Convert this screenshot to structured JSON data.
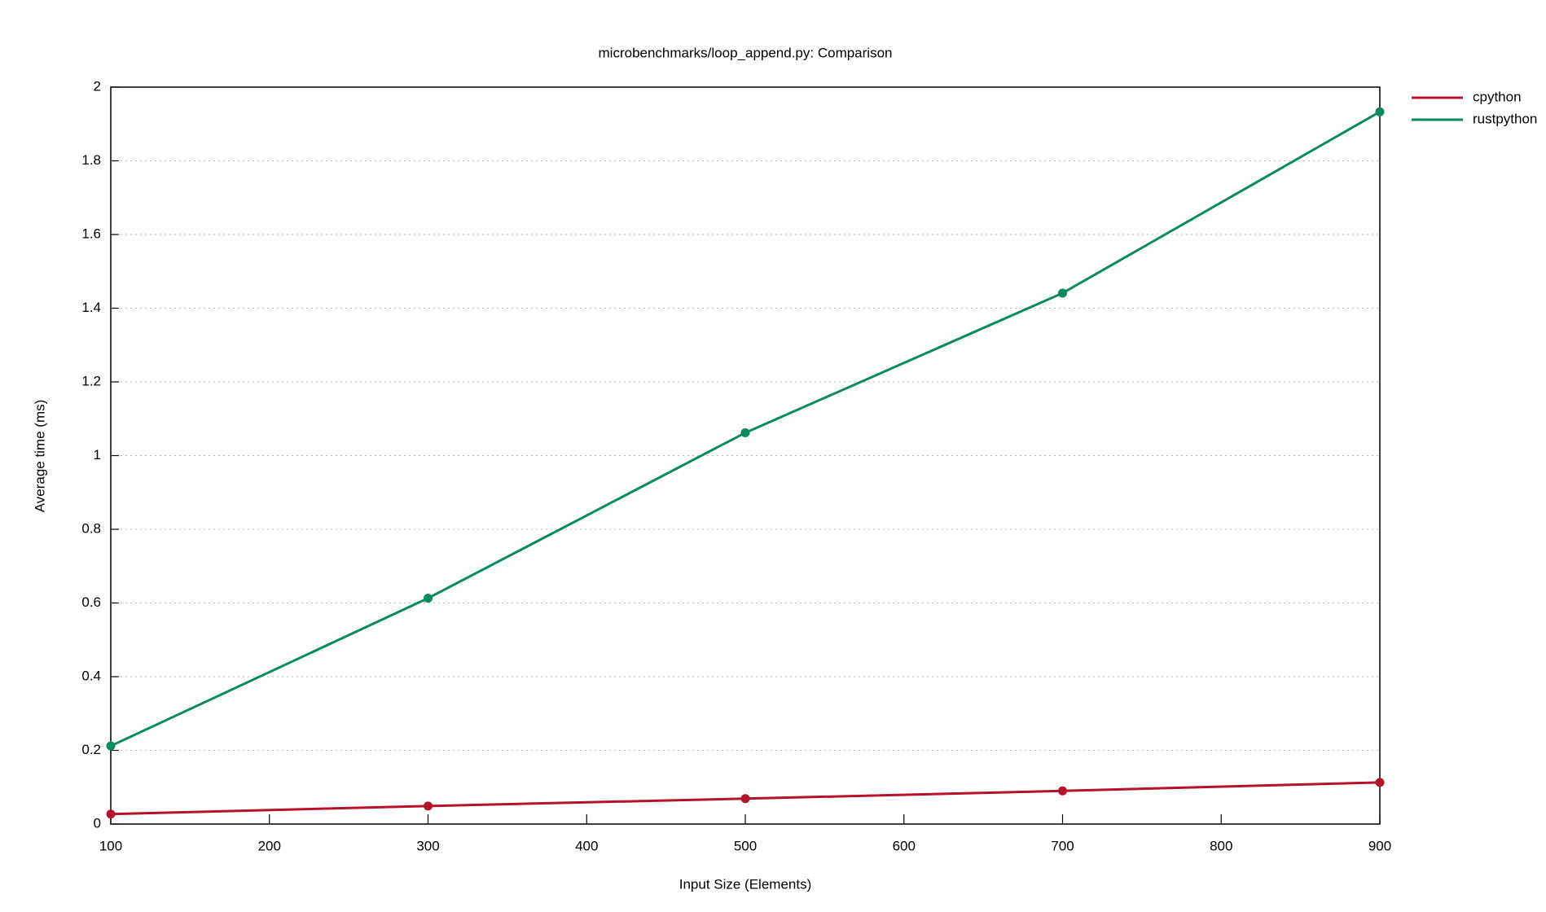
{
  "chart_data": {
    "type": "line",
    "title": "microbenchmarks/loop_append.py: Comparison",
    "xlabel": "Input Size (Elements)",
    "ylabel": "Average time (ms)",
    "x": [
      100,
      300,
      500,
      700,
      900
    ],
    "series": [
      {
        "name": "cpython",
        "color": "#b5122b",
        "values": [
          0.027,
          0.049,
          0.069,
          0.09,
          0.113
        ]
      },
      {
        "name": "rustpython",
        "color": "#0a8a5f",
        "values": [
          0.212,
          0.613,
          1.062,
          1.441,
          1.933
        ]
      }
    ],
    "xlim": [
      100,
      900
    ],
    "xticks": [
      100,
      200,
      300,
      400,
      500,
      600,
      700,
      800,
      900
    ],
    "ylim": [
      0,
      2
    ],
    "yticks": [
      0,
      0.2,
      0.4,
      0.6,
      0.8,
      1,
      1.2,
      1.4,
      1.6,
      1.8,
      2
    ],
    "grid": true,
    "legend": "outside-right"
  }
}
